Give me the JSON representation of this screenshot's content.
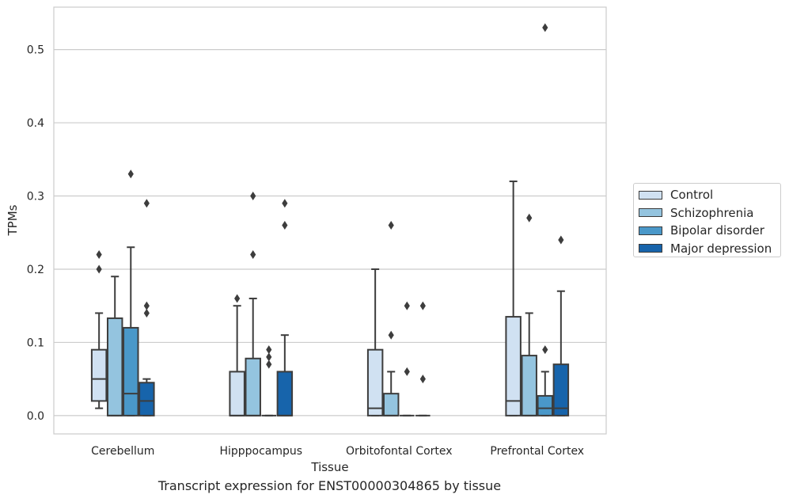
{
  "chart_data": {
    "type": "box",
    "xlabel": "Tissue",
    "ylabel": "TPMs",
    "caption": "Transcript expression for ENST00000304865 by tissue",
    "categories": [
      "Cerebellum",
      "Hipppocampus",
      "Orbitofontal Cortex",
      "Prefrontal Cortex"
    ],
    "ylim": [
      -0.025,
      0.558
    ],
    "yticks": [
      0.0,
      0.1,
      0.2,
      0.3,
      0.4,
      0.5
    ],
    "ytick_labels": [
      "0.0",
      "0.1",
      "0.2",
      "0.3",
      "0.4",
      "0.5"
    ],
    "grid": "horizontal",
    "legend_position": "right",
    "series": [
      {
        "name": "Control",
        "color": "#d0e1f2",
        "boxes": [
          {
            "whislo": 0.01,
            "q1": 0.02,
            "med": 0.05,
            "q3": 0.09,
            "whishi": 0.14,
            "fliers": [
              0.2,
              0.22
            ]
          },
          {
            "whislo": 0.0,
            "q1": 0.0,
            "med": 0.0,
            "q3": 0.06,
            "whishi": 0.15,
            "fliers": [
              0.16
            ]
          },
          {
            "whislo": 0.0,
            "q1": 0.0,
            "med": 0.01,
            "q3": 0.09,
            "whishi": 0.2,
            "fliers": []
          },
          {
            "whislo": 0.0,
            "q1": 0.0,
            "med": 0.02,
            "q3": 0.135,
            "whishi": 0.32,
            "fliers": []
          }
        ]
      },
      {
        "name": "Schizophrenia",
        "color": "#94c4df",
        "boxes": [
          {
            "whislo": 0.0,
            "q1": 0.0,
            "med": 0.0,
            "q3": 0.133,
            "whishi": 0.19,
            "fliers": []
          },
          {
            "whislo": 0.0,
            "q1": 0.0,
            "med": 0.0,
            "q3": 0.078,
            "whishi": 0.16,
            "fliers": [
              0.22,
              0.3
            ]
          },
          {
            "whislo": 0.0,
            "q1": 0.0,
            "med": 0.0,
            "q3": 0.03,
            "whishi": 0.06,
            "fliers": [
              0.11,
              0.26
            ]
          },
          {
            "whislo": 0.0,
            "q1": 0.0,
            "med": 0.0,
            "q3": 0.082,
            "whishi": 0.14,
            "fliers": [
              0.27
            ]
          }
        ]
      },
      {
        "name": "Bipolar disorder",
        "color": "#4a98c9",
        "boxes": [
          {
            "whislo": 0.0,
            "q1": 0.0,
            "med": 0.03,
            "q3": 0.12,
            "whishi": 0.23,
            "fliers": [
              0.33
            ]
          },
          {
            "whislo": 0.0,
            "q1": 0.0,
            "med": 0.0,
            "q3": 0.0,
            "whishi": 0.0,
            "fliers": [
              0.07,
              0.08,
              0.09
            ]
          },
          {
            "whislo": 0.0,
            "q1": 0.0,
            "med": 0.0,
            "q3": 0.0,
            "whishi": 0.0,
            "fliers": [
              0.06,
              0.15
            ]
          },
          {
            "whislo": 0.0,
            "q1": 0.0,
            "med": 0.01,
            "q3": 0.027,
            "whishi": 0.06,
            "fliers": [
              0.09,
              0.53
            ]
          }
        ]
      },
      {
        "name": "Major depression",
        "color": "#1764ab",
        "boxes": [
          {
            "whislo": 0.0,
            "q1": 0.0,
            "med": 0.02,
            "q3": 0.045,
            "whishi": 0.05,
            "fliers": [
              0.14,
              0.15,
              0.29
            ]
          },
          {
            "whislo": 0.0,
            "q1": 0.0,
            "med": 0.0,
            "q3": 0.06,
            "whishi": 0.11,
            "fliers": [
              0.26,
              0.29
            ]
          },
          {
            "whislo": 0.0,
            "q1": 0.0,
            "med": 0.0,
            "q3": 0.0,
            "whishi": 0.0,
            "fliers": [
              0.05,
              0.15
            ]
          },
          {
            "whislo": 0.0,
            "q1": 0.0,
            "med": 0.01,
            "q3": 0.07,
            "whishi": 0.17,
            "fliers": [
              0.24
            ]
          }
        ]
      }
    ]
  }
}
